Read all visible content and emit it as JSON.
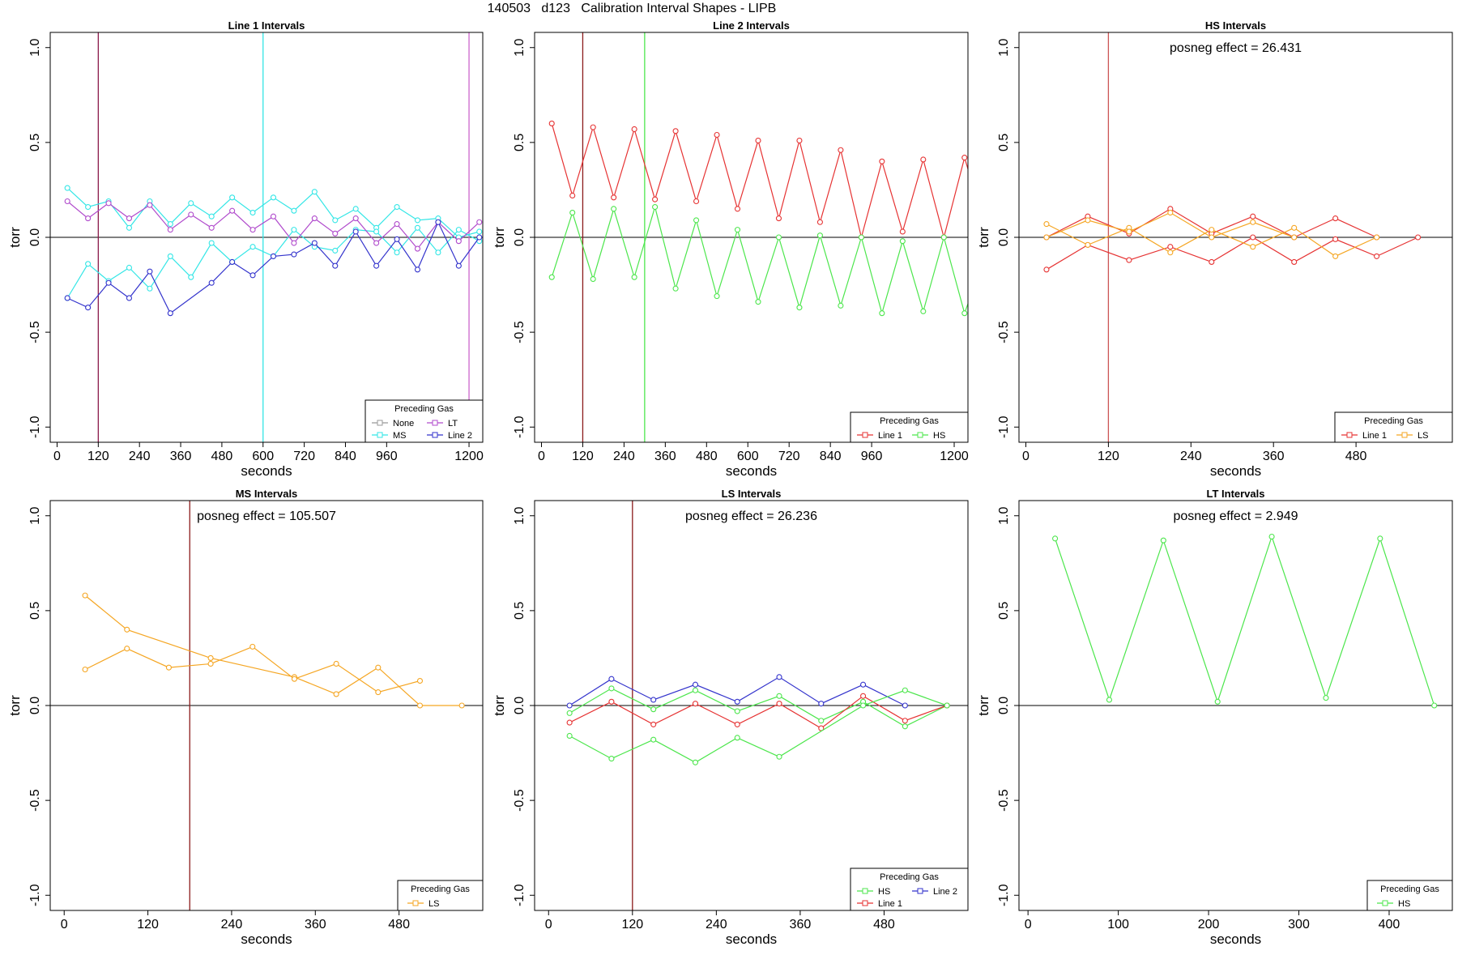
{
  "figure": {
    "title": "140503   d123   Calibration Interval Shapes - LIPB"
  },
  "chart_data": [
    {
      "type": "line",
      "title": "Line 1 Intervals",
      "xlabel": "seconds",
      "ylabel": "torr",
      "xlim": [
        -20,
        1240
      ],
      "ylim": [
        -1.08,
        1.08
      ],
      "xticks": [
        0,
        120,
        240,
        360,
        480,
        600,
        720,
        840,
        960,
        1200
      ],
      "yticks": [
        -1.0,
        -0.5,
        0.0,
        0.5,
        1.0
      ],
      "zero_line": true,
      "annotation": "",
      "vlines": [
        {
          "x": 120,
          "color": "#8B1A4A"
        },
        {
          "x": 600,
          "color": "#33E6E6"
        },
        {
          "x": 1200,
          "color": "#CC66CC"
        }
      ],
      "legend": {
        "title": "Preceding Gas",
        "position": "bottom-right",
        "columns": 2,
        "entries": [
          {
            "label": "None",
            "color": "#999999"
          },
          {
            "label": "LT",
            "color": "#B04ACC"
          },
          {
            "label": "MS",
            "color": "#33E6E6"
          },
          {
            "label": "Line 2",
            "color": "#3333CC"
          }
        ]
      },
      "series": [
        {
          "name": "MS",
          "color": "#33E6E6",
          "x": [
            30,
            90,
            150,
            210,
            270,
            330,
            390,
            450,
            510,
            570,
            630,
            690,
            750,
            810,
            870,
            930,
            990,
            1050,
            1110,
            1170,
            1230
          ],
          "y": [
            0.26,
            0.16,
            0.19,
            0.05,
            0.19,
            0.07,
            0.18,
            0.11,
            0.21,
            0.13,
            0.21,
            0.14,
            0.24,
            0.09,
            0.15,
            0.05,
            0.16,
            0.09,
            0.1,
            0.0,
            0.03
          ]
        },
        {
          "name": "MS",
          "color": "#33E6E6",
          "x": [
            30,
            90,
            150,
            210,
            270,
            330,
            390,
            450,
            510,
            570,
            630,
            690,
            750,
            810,
            870,
            930,
            990,
            1050,
            1110,
            1170,
            1230
          ],
          "y": [
            -0.32,
            -0.14,
            -0.23,
            -0.16,
            -0.27,
            -0.1,
            -0.21,
            -0.03,
            -0.13,
            -0.05,
            -0.1,
            0.04,
            -0.05,
            -0.07,
            0.04,
            0.03,
            -0.08,
            0.05,
            -0.08,
            0.04,
            -0.02
          ]
        },
        {
          "name": "LT",
          "color": "#B04ACC",
          "x": [
            30,
            90,
            150,
            210,
            270,
            330,
            390,
            450,
            510,
            570,
            630,
            690,
            750,
            810,
            870,
            930,
            990,
            1050,
            1110,
            1170,
            1230
          ],
          "y": [
            0.19,
            0.1,
            0.18,
            0.1,
            0.17,
            0.04,
            0.12,
            0.05,
            0.14,
            0.04,
            0.11,
            -0.03,
            0.1,
            0.02,
            0.1,
            -0.03,
            0.07,
            -0.06,
            0.08,
            -0.02,
            0.08
          ]
        },
        {
          "name": "Line 2",
          "color": "#3333CC",
          "x": [
            30,
            90,
            150,
            210,
            270,
            330,
            450,
            510,
            570,
            630,
            690,
            750,
            810,
            870,
            930,
            990,
            1050,
            1110,
            1170,
            1230
          ],
          "y": [
            -0.32,
            -0.37,
            -0.24,
            -0.32,
            -0.18,
            -0.4,
            -0.24,
            -0.13,
            -0.2,
            -0.1,
            -0.09,
            -0.03,
            -0.15,
            0.03,
            -0.15,
            -0.01,
            -0.17,
            0.08,
            -0.15,
            0.0
          ]
        }
      ]
    },
    {
      "type": "line",
      "title": "Line 2 Intervals",
      "xlabel": "seconds",
      "ylabel": "torr",
      "xlim": [
        -20,
        1240
      ],
      "ylim": [
        -1.08,
        1.08
      ],
      "xticks": [
        0,
        120,
        240,
        360,
        480,
        600,
        720,
        840,
        960,
        1200
      ],
      "yticks": [
        -1.0,
        -0.5,
        0.0,
        0.5,
        1.0
      ],
      "zero_line": true,
      "annotation": "",
      "vlines": [
        {
          "x": 120,
          "color": "#8B1A1A"
        },
        {
          "x": 300,
          "color": "#4CE64C"
        }
      ],
      "legend": {
        "title": "Preceding Gas",
        "position": "bottom-right",
        "columns": 2,
        "entries": [
          {
            "label": "Line 1",
            "color": "#E63333"
          },
          {
            "label": "HS",
            "color": "#4CE64C"
          }
        ]
      },
      "series": [
        {
          "name": "Line 1",
          "color": "#E63333",
          "x": [
            30,
            90,
            150,
            210,
            270,
            330,
            390,
            450,
            510,
            570,
            630,
            690,
            750,
            810,
            870,
            930,
            990,
            1050,
            1110,
            1170,
            1230,
            1250
          ],
          "y": [
            0.6,
            0.22,
            0.58,
            0.21,
            0.57,
            0.2,
            0.56,
            0.19,
            0.54,
            0.15,
            0.51,
            0.1,
            0.51,
            0.08,
            0.46,
            0.0,
            0.4,
            0.03,
            0.41,
            0.0,
            0.42,
            0.3
          ]
        },
        {
          "name": "HS",
          "color": "#4CE64C",
          "x": [
            30,
            90,
            150,
            210,
            270,
            330,
            390,
            450,
            510,
            570,
            630,
            690,
            750,
            810,
            870,
            930,
            990,
            1050,
            1110,
            1170,
            1230,
            1250
          ],
          "y": [
            -0.21,
            0.13,
            -0.22,
            0.15,
            -0.21,
            0.16,
            -0.27,
            0.09,
            -0.31,
            0.04,
            -0.34,
            0.0,
            -0.37,
            0.01,
            -0.36,
            0.0,
            -0.4,
            -0.02,
            -0.39,
            0.0,
            -0.4,
            -0.3
          ]
        }
      ]
    },
    {
      "type": "line",
      "title": "HS Intervals",
      "xlabel": "seconds",
      "ylabel": "torr",
      "xlim": [
        -10,
        620
      ],
      "ylim": [
        -1.08,
        1.08
      ],
      "xticks": [
        0,
        120,
        240,
        360,
        480
      ],
      "yticks": [
        -1.0,
        -0.5,
        0.0,
        0.5,
        1.0
      ],
      "zero_line": true,
      "annotation": "posneg effect = 26.431",
      "vlines": [
        {
          "x": 120,
          "color": "#CC5555"
        }
      ],
      "legend": {
        "title": "Preceding Gas",
        "position": "bottom-right",
        "columns": 2,
        "entries": [
          {
            "label": "Line 1",
            "color": "#E63333"
          },
          {
            "label": "LS",
            "color": "#F5A623"
          }
        ]
      },
      "series": [
        {
          "name": "Line 1",
          "color": "#E63333",
          "x": [
            30,
            90,
            150,
            210,
            270,
            330,
            390,
            450,
            510
          ],
          "y": [
            0.0,
            0.11,
            0.02,
            0.15,
            0.02,
            0.11,
            0.0,
            0.1,
            0.0
          ]
        },
        {
          "name": "Line 1",
          "color": "#E63333",
          "x": [
            30,
            90,
            150,
            210,
            270,
            330,
            390,
            450,
            510,
            570
          ],
          "y": [
            -0.17,
            -0.04,
            -0.12,
            -0.05,
            -0.13,
            0.0,
            -0.13,
            -0.01,
            -0.1,
            0.0
          ]
        },
        {
          "name": "LS",
          "color": "#F5A623",
          "x": [
            30,
            90,
            150,
            210,
            270,
            330,
            390,
            450,
            510
          ],
          "y": [
            0.07,
            -0.04,
            0.05,
            -0.08,
            0.04,
            -0.05,
            0.05,
            -0.1,
            0.0
          ]
        },
        {
          "name": "LS",
          "color": "#F5A623",
          "x": [
            30,
            90,
            150,
            210,
            270,
            330,
            390
          ],
          "y": [
            0.0,
            0.09,
            0.03,
            0.13,
            0.0,
            0.08,
            0.0
          ]
        }
      ]
    },
    {
      "type": "line",
      "title": "MS Intervals",
      "xlabel": "seconds",
      "ylabel": "torr",
      "xlim": [
        -20,
        600
      ],
      "ylim": [
        -1.08,
        1.08
      ],
      "xticks": [
        0,
        120,
        240,
        360,
        480
      ],
      "yticks": [
        -1.0,
        -0.5,
        0.0,
        0.5,
        1.0
      ],
      "zero_line": true,
      "annotation": "posneg effect = 105.507",
      "vlines": [
        {
          "x": 180,
          "color": "#8B1A1A"
        }
      ],
      "legend": {
        "title": "Preceding Gas",
        "position": "bottom-right",
        "columns": 1,
        "entries": [
          {
            "label": "LS",
            "color": "#F5A623"
          }
        ]
      },
      "series": [
        {
          "name": "LS",
          "color": "#F5A623",
          "x": [
            30,
            90,
            210,
            330,
            390,
            450,
            510,
            570
          ],
          "y": [
            0.58,
            0.4,
            0.25,
            0.15,
            0.06,
            0.2,
            0.0,
            0.0
          ]
        },
        {
          "name": "LS",
          "color": "#F5A623",
          "x": [
            30,
            90,
            150,
            210,
            270,
            330,
            390,
            450,
            510
          ],
          "y": [
            0.19,
            0.3,
            0.2,
            0.22,
            0.31,
            0.14,
            0.22,
            0.07,
            0.13
          ]
        }
      ]
    },
    {
      "type": "line",
      "title": "LS Intervals",
      "xlabel": "seconds",
      "ylabel": "torr",
      "xlim": [
        -20,
        600
      ],
      "ylim": [
        -1.08,
        1.08
      ],
      "xticks": [
        0,
        120,
        240,
        360,
        480
      ],
      "yticks": [
        -1.0,
        -0.5,
        0.0,
        0.5,
        1.0
      ],
      "zero_line": true,
      "annotation": "posneg effect = 26.236",
      "vlines": [
        {
          "x": 120,
          "color": "#8B1A1A"
        }
      ],
      "legend": {
        "title": "Preceding Gas",
        "position": "bottom-right",
        "columns": 2,
        "entries": [
          {
            "label": "HS",
            "color": "#4CE64C"
          },
          {
            "label": "Line 2",
            "color": "#3333CC"
          },
          {
            "label": "Line 1",
            "color": "#E63333"
          }
        ]
      },
      "series": [
        {
          "name": "Line 2",
          "color": "#3333CC",
          "x": [
            30,
            90,
            150,
            210,
            270,
            330,
            390,
            450,
            510
          ],
          "y": [
            0.0,
            0.14,
            0.03,
            0.11,
            0.02,
            0.15,
            0.01,
            0.11,
            0.0
          ]
        },
        {
          "name": "HS",
          "color": "#4CE64C",
          "x": [
            30,
            90,
            150,
            210,
            270,
            330,
            390,
            450,
            510,
            570
          ],
          "y": [
            -0.04,
            0.09,
            -0.02,
            0.08,
            -0.03,
            0.05,
            -0.08,
            0.02,
            -0.11,
            0.0
          ]
        },
        {
          "name": "Line 1",
          "color": "#E63333",
          "x": [
            30,
            90,
            150,
            210,
            270,
            330,
            390,
            450,
            510,
            570
          ],
          "y": [
            -0.09,
            0.02,
            -0.1,
            0.01,
            -0.1,
            0.01,
            -0.12,
            0.05,
            -0.08,
            0.0
          ]
        },
        {
          "name": "HS",
          "color": "#4CE64C",
          "x": [
            30,
            90,
            150,
            210,
            270,
            330,
            450,
            510,
            570
          ],
          "y": [
            -0.16,
            -0.28,
            -0.18,
            -0.3,
            -0.17,
            -0.27,
            0.0,
            0.08,
            0.0
          ]
        }
      ]
    },
    {
      "type": "line",
      "title": "LT Intervals",
      "xlabel": "seconds",
      "ylabel": "torr",
      "xlim": [
        -10,
        470
      ],
      "ylim": [
        -1.08,
        1.08
      ],
      "xticks": [
        0,
        100,
        200,
        300,
        400
      ],
      "yticks": [
        -1.0,
        -0.5,
        0.0,
        0.5,
        1.0
      ],
      "zero_line": true,
      "annotation": "posneg effect = 2.949",
      "vlines": [],
      "legend": {
        "title": "Preceding Gas",
        "position": "bottom-right",
        "columns": 1,
        "entries": [
          {
            "label": "HS",
            "color": "#4CE64C"
          }
        ]
      },
      "series": [
        {
          "name": "HS",
          "color": "#4CE64C",
          "x": [
            30,
            90,
            150,
            210,
            270,
            330,
            390,
            450
          ],
          "y": [
            0.88,
            0.03,
            0.87,
            0.02,
            0.89,
            0.04,
            0.88,
            0.0
          ]
        }
      ]
    }
  ]
}
